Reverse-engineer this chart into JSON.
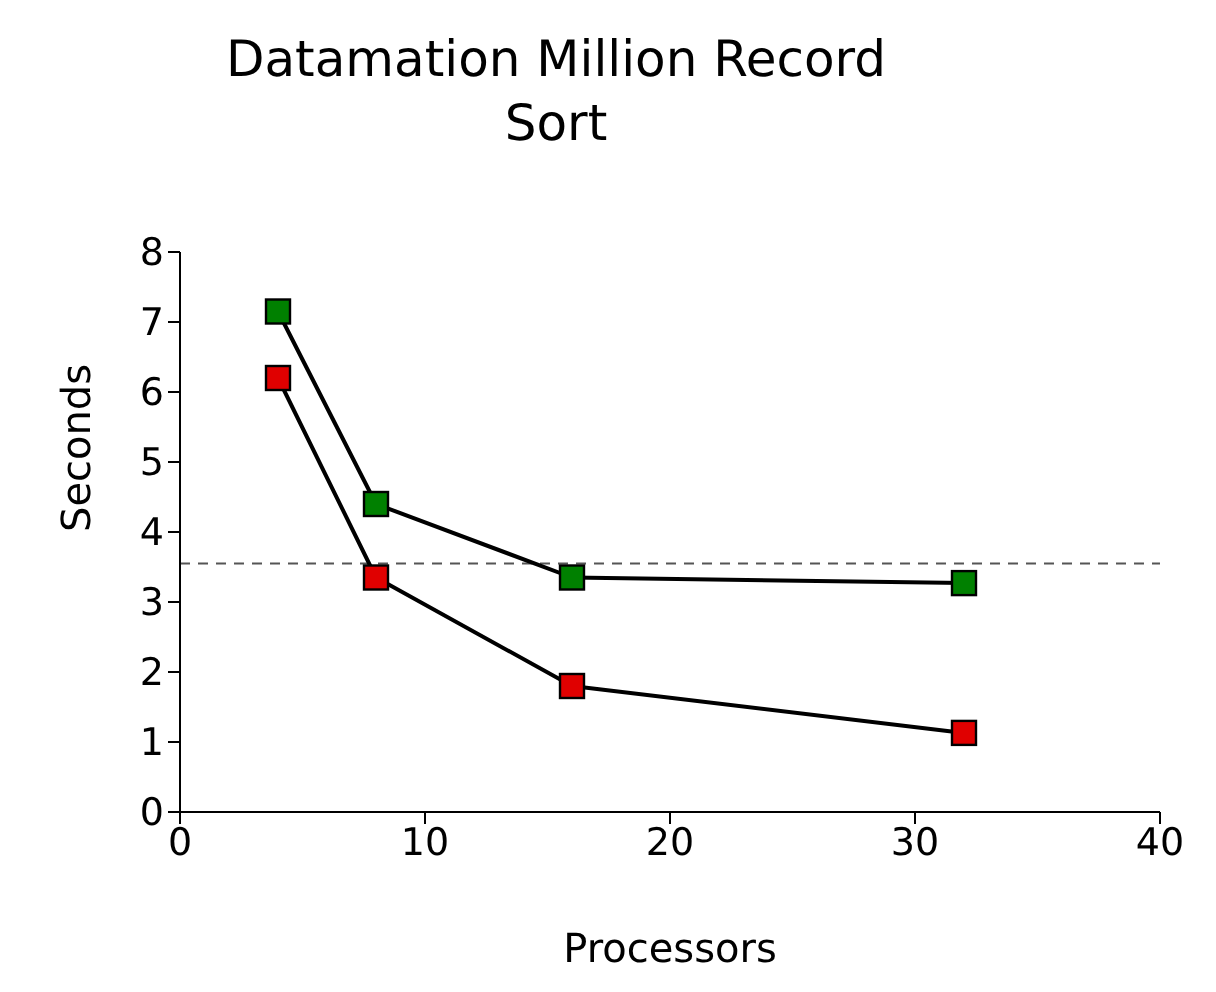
{
  "chart_data": {
    "type": "line",
    "title": "Datamation Million Record Sort",
    "xlabel": "Processors",
    "ylabel": "Seconds",
    "x": [
      4,
      8,
      16,
      32
    ],
    "series": [
      {
        "color": "#008000",
        "values": [
          7.15,
          4.4,
          3.35,
          3.27
        ]
      },
      {
        "color": "#e00000",
        "values": [
          6.2,
          3.35,
          1.8,
          1.13
        ]
      }
    ],
    "xlim": [
      0,
      40
    ],
    "xticks": [
      0,
      10,
      20,
      30,
      40
    ],
    "ylim": [
      0,
      8
    ],
    "yticks": [
      0,
      1,
      2,
      3,
      4,
      5,
      6,
      7,
      8
    ],
    "ref_lines": [
      {
        "axis": "y",
        "value": 3.55,
        "color": "#555555",
        "line_style": "dashed"
      }
    ],
    "grid": false,
    "legend": false,
    "marker": "square",
    "line_style": "solid"
  }
}
